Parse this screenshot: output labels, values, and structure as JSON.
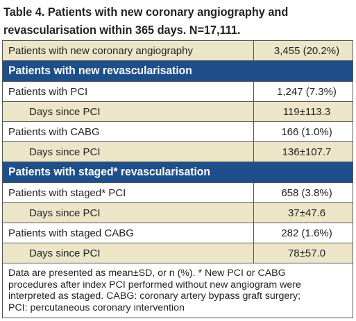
{
  "title": {
    "line1": "Table 4. Patients with new coronary angiography and",
    "line2": "revascularisation within 365 days. N=17,111."
  },
  "rows": [
    {
      "label": "Patients with new coronary angiography",
      "value": "3,455 (20.2%)"
    }
  ],
  "section1": {
    "header": "Patients with new revascularisation",
    "rows": [
      {
        "label": "Patients with PCI",
        "value": "1,247 (7.3%)"
      },
      {
        "label": "Days since PCI",
        "value": "119±113.3"
      },
      {
        "label": "Patients with CABG",
        "value": "166 (1.0%)"
      },
      {
        "label": "Days since PCI",
        "value": "136±107.7"
      }
    ]
  },
  "section2": {
    "header": "Patients with staged* revascularisation",
    "rows": [
      {
        "label": "Patients with staged* PCI",
        "value": "658 (3.8%)"
      },
      {
        "label": "Days since PCI",
        "value": "37±47.6"
      },
      {
        "label": "Patients with staged CABG",
        "value": "282 (1.6%)"
      },
      {
        "label": "Days since PCI",
        "value": "78±57.0"
      }
    ]
  },
  "footnote": {
    "line1": "Data are presented as mean±SD, or n (%). * New PCI or CABG",
    "line2": "procedures after index PCI performed without new angiogram were",
    "line3": "interpreted as staged. CABG: coronary artery bypass graft surgery;",
    "line4": "PCI: percutaneous coronary intervention"
  }
}
